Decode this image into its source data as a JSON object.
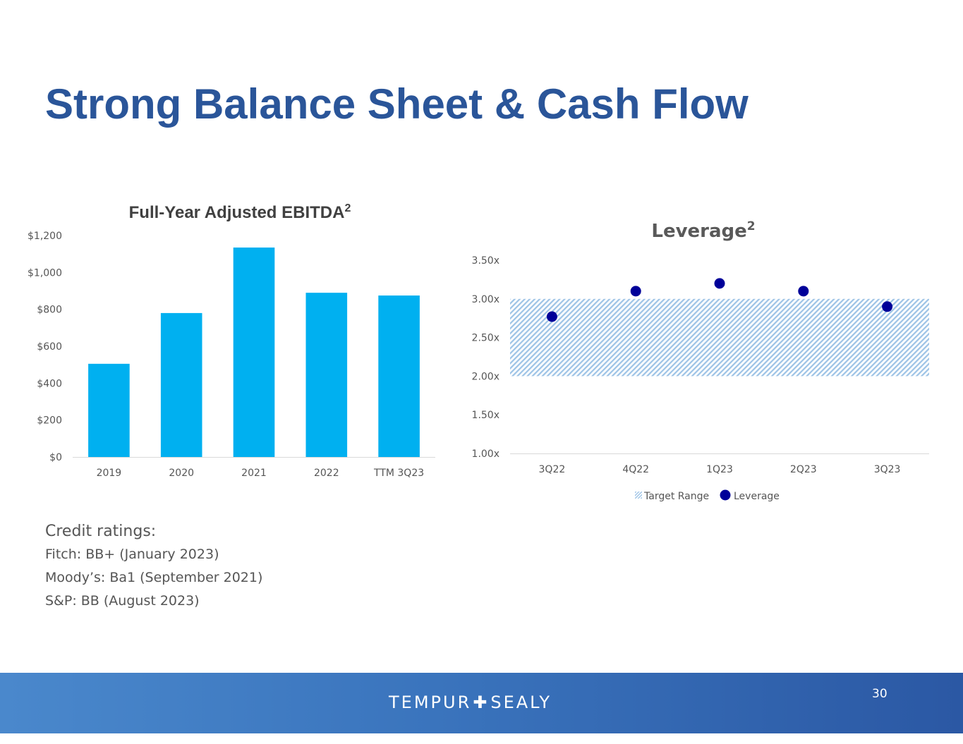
{
  "slide": {
    "title": "Strong Balance Sheet & Cash Flow"
  },
  "chart_data": [
    {
      "type": "bar",
      "title": "Full-Year Adjusted EBITDA",
      "title_superscript": "2",
      "categories": [
        "2019",
        "2020",
        "2021",
        "2022",
        "TTM 3Q23"
      ],
      "values": [
        505,
        780,
        1135,
        890,
        875
      ],
      "ylim": [
        0,
        1200
      ],
      "yticks": [
        0,
        200,
        400,
        600,
        800,
        1000,
        1200
      ],
      "ytick_labels": [
        "$0",
        "$200",
        "$400",
        "$600",
        "$800",
        "$1,000",
        "$1,200"
      ],
      "grid": false,
      "color": "#00b0f0"
    },
    {
      "type": "scatter",
      "title": "Leverage",
      "title_superscript": "2",
      "categories": [
        "3Q22",
        "4Q22",
        "1Q23",
        "2Q23",
        "3Q23"
      ],
      "series": [
        {
          "name": "Leverage",
          "values": [
            2.77,
            3.1,
            3.2,
            3.1,
            2.9
          ],
          "color": "#000099"
        }
      ],
      "target_range": {
        "name": "Target Range",
        "low": 2.0,
        "high": 3.0,
        "color": "#9dc3e6"
      },
      "ylim": [
        1.0,
        3.5
      ],
      "yticks": [
        1.0,
        1.5,
        2.0,
        2.5,
        3.0,
        3.5
      ],
      "ytick_labels": [
        "1.00x",
        "1.50x",
        "2.00x",
        "2.50x",
        "3.00x",
        "3.50x"
      ],
      "legend": "bottom",
      "grid": false
    }
  ],
  "credit": {
    "heading": "Credit ratings:",
    "lines": [
      "Fitch: BB+  (January 2023)",
      "Moody’s: Ba1 (September 2021)",
      "S&P: BB (August 2023)"
    ]
  },
  "footer": {
    "logo_left": "TEMPUR",
    "logo_cross": "✚",
    "logo_right": "SEALY",
    "page_number": "30"
  }
}
